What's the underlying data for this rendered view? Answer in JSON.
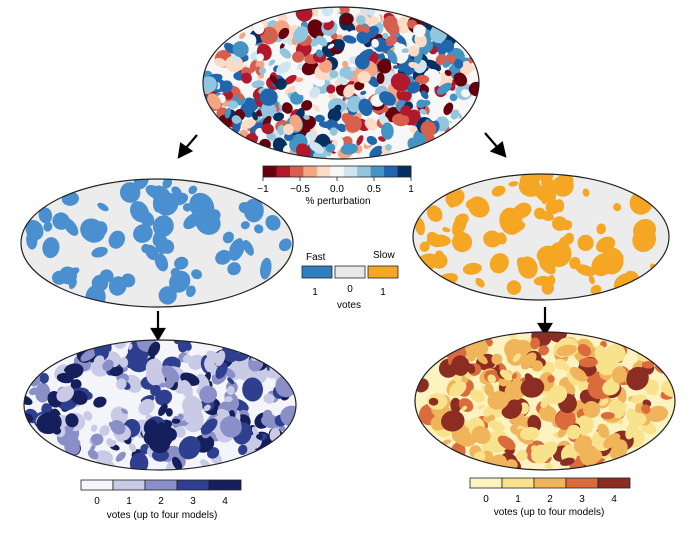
{
  "figure": {
    "description_free": true,
    "panels": {
      "top": {
        "name": "tomography-model"
      },
      "fast": {
        "name": "fast-anomaly-votes-single"
      },
      "slow": {
        "name": "slow-anomaly-votes-single"
      },
      "fast_count": {
        "name": "fast-anomaly-vote-count"
      },
      "slow_count": {
        "name": "slow-anomaly-vote-count"
      }
    }
  },
  "perturbation_colorbar": {
    "tick_labels": [
      "−1",
      "−0.5",
      "0.0",
      "0.5",
      "1"
    ],
    "label": "% perturbation",
    "colors": [
      "#67000d",
      "#b2182b",
      "#d6604d",
      "#f4a582",
      "#fddbc7",
      "#f7f7f7",
      "#d1e5f0",
      "#92c5de",
      "#4393c3",
      "#2166ac",
      "#053061"
    ]
  },
  "vote_key": {
    "fast_label": "Fast",
    "slow_label": "Slow",
    "fast_value": "1",
    "zero_value": "0",
    "slow_value": "1",
    "caption": "votes",
    "fast_color": "#2f7fc1",
    "zero_color": "#e8e8e8",
    "slow_color": "#f5a623"
  },
  "fast_count_legend": {
    "labels": [
      "0",
      "1",
      "2",
      "3",
      "4"
    ],
    "colors": [
      "#f4f4fb",
      "#c9cbe6",
      "#8a8fc8",
      "#2f3f8f",
      "#141f5c"
    ],
    "caption": "votes (up to four models)"
  },
  "slow_count_legend": {
    "labels": [
      "0",
      "1",
      "2",
      "3",
      "4"
    ],
    "colors": [
      "#fdf3c0",
      "#f8e28c",
      "#f0b45a",
      "#db6b3d",
      "#8b2d22"
    ],
    "caption": "votes (up to four models)"
  },
  "map_colors": {
    "fast_single": "#4a8fd0",
    "slow_single": "#f5a623",
    "background_grey": "#ececec",
    "coastline": "#222222"
  }
}
